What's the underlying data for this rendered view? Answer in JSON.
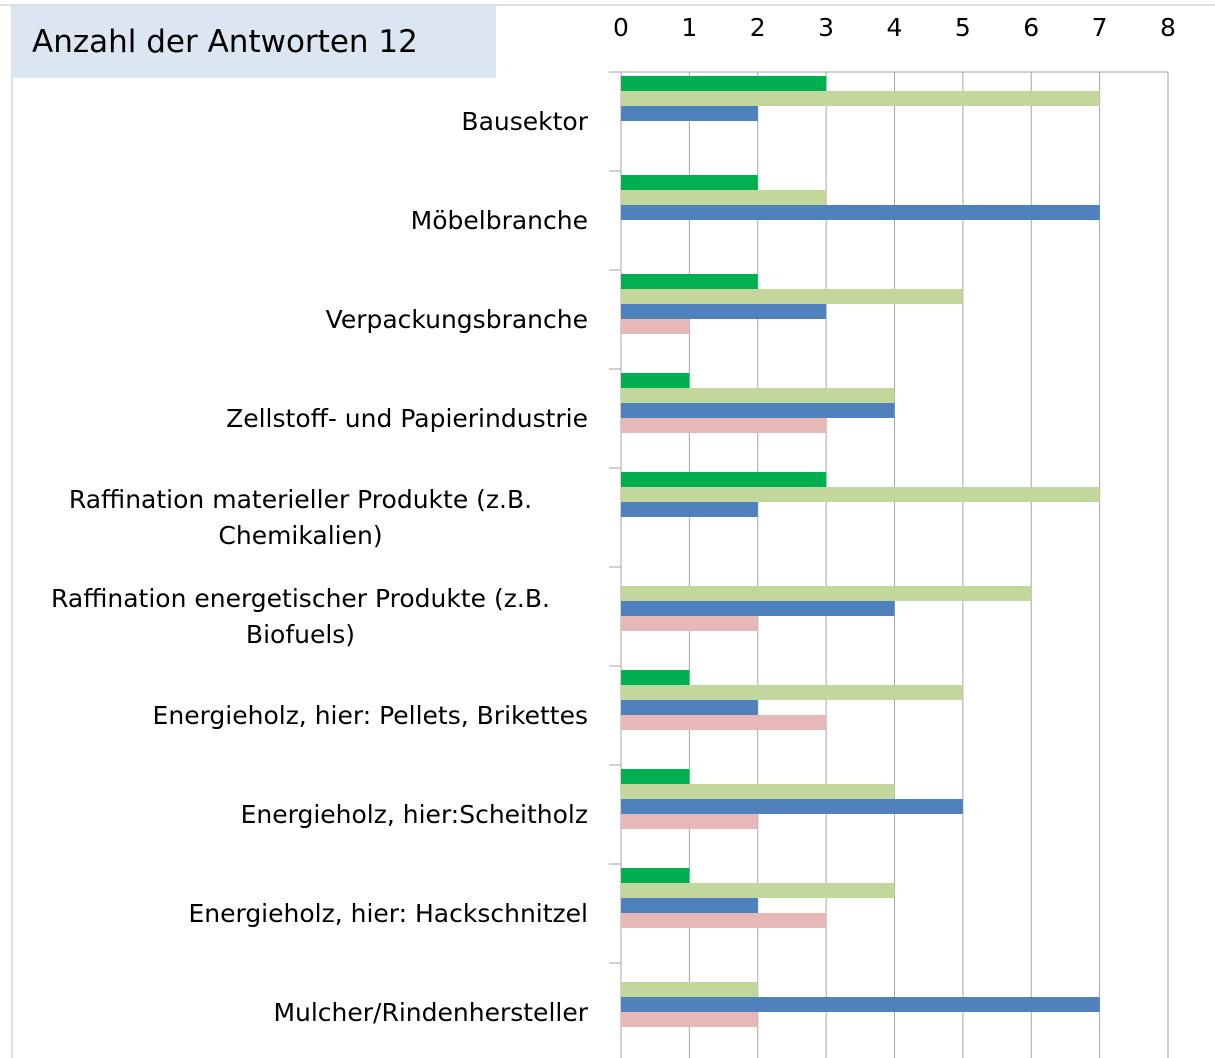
{
  "chart_data": {
    "type": "bar",
    "orientation": "horizontal",
    "title": "Anzahl der Antworten 12",
    "categories": [
      "Bausektor",
      "Möbelbranche",
      "Verpackungsbranche",
      "Zellstoff- und Papierindustrie",
      "Raffination materieller Produkte (z.B. Chemikalien)",
      "Raffination energetischer Produkte (z.B. Biofuels)",
      "Energieholz, hier: Pellets, Brikettes",
      "Energieholz, hier:Scheitholz",
      "Energieholz, hier: Hackschnitzel",
      "Mulcher/Rindenhersteller"
    ],
    "series": [
      {
        "color": "#00b050",
        "values": [
          3,
          2,
          2,
          1,
          3,
          0,
          1,
          1,
          1,
          0
        ]
      },
      {
        "color": "#c3d69b",
        "values": [
          7,
          3,
          5,
          4,
          7,
          6,
          5,
          4,
          4,
          2
        ]
      },
      {
        "color": "#4f81bd",
        "values": [
          2,
          7,
          3,
          4,
          2,
          4,
          2,
          5,
          2,
          7
        ]
      },
      {
        "color": "#e6b9b8",
        "values": [
          0,
          0,
          1,
          3,
          0,
          2,
          3,
          2,
          3,
          2
        ]
      }
    ],
    "xlim": [
      0,
      8
    ],
    "xticks": [
      0,
      1,
      2,
      3,
      4,
      5,
      6,
      7,
      8
    ],
    "grid": true
  }
}
